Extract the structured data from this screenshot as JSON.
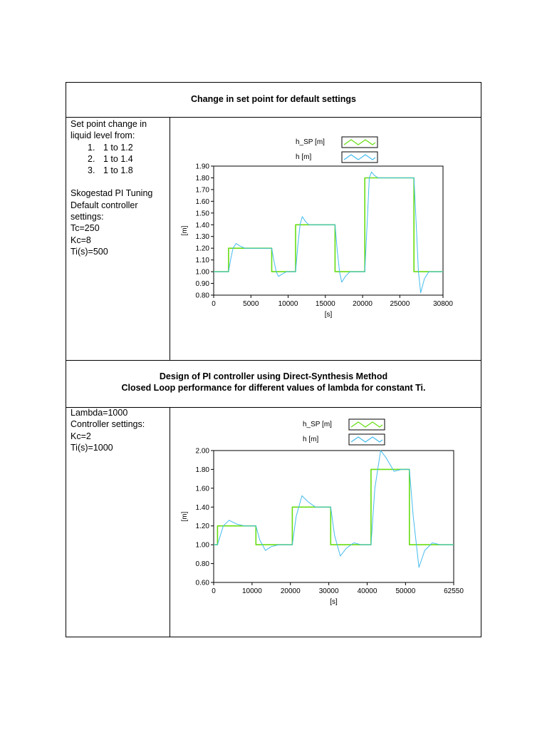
{
  "sections": [
    {
      "title_lines": [
        "Change in set point for default settings"
      ],
      "description": {
        "intro_lines": [
          "Set point change in",
          "liquid level from:"
        ],
        "list": [
          {
            "num": "1.",
            "text": "1 to 1.2"
          },
          {
            "num": "2.",
            "text": "1 to 1.4"
          },
          {
            "num": "3.",
            "text": "1 to 1.8"
          }
        ],
        "settings_lines": [
          "Skogestad PI Tuning",
          "Default controller",
          "settings:",
          "Tc=250",
          "Kc=8",
          "Ti(s)=500"
        ]
      }
    },
    {
      "title_lines": [
        "Design of PI controller using Direct-Synthesis Method",
        "Closed Loop performance for different values of lambda for constant Ti."
      ],
      "description": {
        "intro_lines": [],
        "list": [],
        "settings_lines": [
          "Lambda=1000",
          "Controller settings:",
          "Kc=2",
          "Ti(s)=1000"
        ]
      }
    }
  ],
  "colors": {
    "setpoint": "#66dd11",
    "level": "#44bbee",
    "axis": "#000000"
  },
  "chart_data": [
    {
      "type": "line",
      "xlabel": "[s]",
      "ylabel": "[m]",
      "xlim": [
        0,
        30800
      ],
      "ylim": [
        0.8,
        1.9
      ],
      "xticks": [
        0,
        5000,
        10000,
        15000,
        20000,
        25000,
        30800
      ],
      "yticks": [
        0.8,
        0.9,
        1.0,
        1.1,
        1.2,
        1.3,
        1.4,
        1.5,
        1.6,
        1.7,
        1.8,
        1.9
      ],
      "legend": "top-right",
      "series": [
        {
          "name": "h_SP [m]",
          "x": [
            0,
            2000,
            2000,
            7800,
            7800,
            11000,
            11000,
            16300,
            16300,
            20300,
            20300,
            26900,
            26900,
            30800
          ],
          "y": [
            1.0,
            1.0,
            1.2,
            1.2,
            1.0,
            1.0,
            1.4,
            1.4,
            1.0,
            1.0,
            1.8,
            1.8,
            1.0,
            1.0
          ]
        },
        {
          "name": "h [m]",
          "x": [
            0,
            2000,
            2300,
            2600,
            3000,
            3500,
            4200,
            5000,
            7800,
            8100,
            8400,
            8700,
            9200,
            9800,
            11000,
            11300,
            11600,
            11900,
            12300,
            12800,
            13500,
            16300,
            16600,
            16900,
            17200,
            17700,
            18300,
            20300,
            20600,
            20900,
            21200,
            21600,
            22100,
            22800,
            26900,
            27200,
            27500,
            27800,
            28300,
            28900,
            30800
          ],
          "y": [
            1.0,
            1.0,
            1.11,
            1.2,
            1.24,
            1.22,
            1.2,
            1.2,
            1.2,
            1.09,
            1.0,
            0.96,
            0.98,
            1.0,
            1.0,
            1.22,
            1.4,
            1.47,
            1.43,
            1.4,
            1.4,
            1.4,
            1.18,
            1.0,
            0.91,
            0.96,
            1.0,
            1.0,
            1.4,
            1.8,
            1.85,
            1.82,
            1.8,
            1.8,
            1.8,
            1.4,
            1.0,
            0.82,
            0.94,
            1.0,
            1.0
          ]
        }
      ]
    },
    {
      "type": "line",
      "xlabel": "[s]",
      "ylabel": "[m]",
      "xlim": [
        0,
        62550
      ],
      "ylim": [
        0.6,
        2.0
      ],
      "xticks": [
        0,
        10000,
        20000,
        30000,
        40000,
        50000,
        62550
      ],
      "yticks": [
        0.6,
        0.8,
        1.0,
        1.2,
        1.4,
        1.6,
        1.8,
        2.0
      ],
      "legend": "top-right",
      "series": [
        {
          "name": "h_SP [m]",
          "x": [
            0,
            1000,
            1000,
            11000,
            11000,
            20500,
            20500,
            30500,
            30500,
            41000,
            41000,
            51000,
            51000,
            62550
          ],
          "y": [
            1.0,
            1.0,
            1.2,
            1.2,
            1.0,
            1.0,
            1.4,
            1.4,
            1.0,
            1.0,
            1.8,
            1.8,
            1.0,
            1.0
          ]
        },
        {
          "name": "h [m]",
          "x": [
            0,
            1000,
            2500,
            4000,
            6000,
            8000,
            11000,
            12000,
            13500,
            15000,
            17000,
            19000,
            20500,
            21500,
            23000,
            24500,
            26500,
            30500,
            31500,
            33000,
            34500,
            36500,
            38500,
            41000,
            42000,
            43500,
            45000,
            47000,
            49000,
            51000,
            52000,
            53500,
            55000,
            57000,
            59000,
            62550
          ],
          "y": [
            1.0,
            1.0,
            1.2,
            1.26,
            1.22,
            1.2,
            1.2,
            1.05,
            0.94,
            0.98,
            1.0,
            1.0,
            1.0,
            1.3,
            1.52,
            1.46,
            1.4,
            1.4,
            1.1,
            0.88,
            0.96,
            1.02,
            1.0,
            1.0,
            1.6,
            2.0,
            1.92,
            1.78,
            1.8,
            1.8,
            1.3,
            0.76,
            0.94,
            1.02,
            1.0,
            1.0
          ]
        }
      ]
    }
  ]
}
